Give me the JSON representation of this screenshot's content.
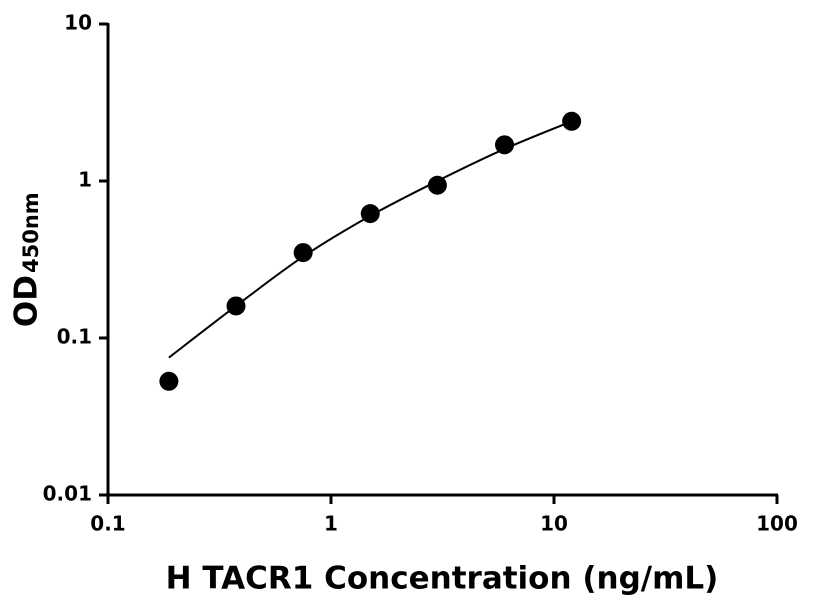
{
  "chart_data": {
    "type": "scatter",
    "x_label": "H TACR1 Concentration (ng/mL)",
    "y_label": "OD",
    "y_label_subscript": "450nm",
    "xscale": "log",
    "yscale": "log",
    "xlim": [
      0.1,
      100
    ],
    "xticks": [
      0.1,
      1,
      10,
      100
    ],
    "ylim": [
      0.01,
      10
    ],
    "yticks": [
      0.01,
      0.1,
      1,
      10
    ],
    "series": [
      {
        "style": "markers",
        "color": "#000000",
        "x": [
          0.1875,
          0.375,
          0.75,
          1.5,
          3,
          6,
          12
        ],
        "values": [
          0.053,
          0.16,
          0.35,
          0.62,
          0.94,
          1.7,
          2.4
        ]
      },
      {
        "style": "line",
        "color": "#000000",
        "x": [
          0.1875,
          0.375,
          0.75,
          1.5,
          3,
          6,
          12
        ],
        "values": [
          0.075,
          0.16,
          0.33,
          0.6,
          1.0,
          1.6,
          2.4
        ]
      }
    ]
  }
}
